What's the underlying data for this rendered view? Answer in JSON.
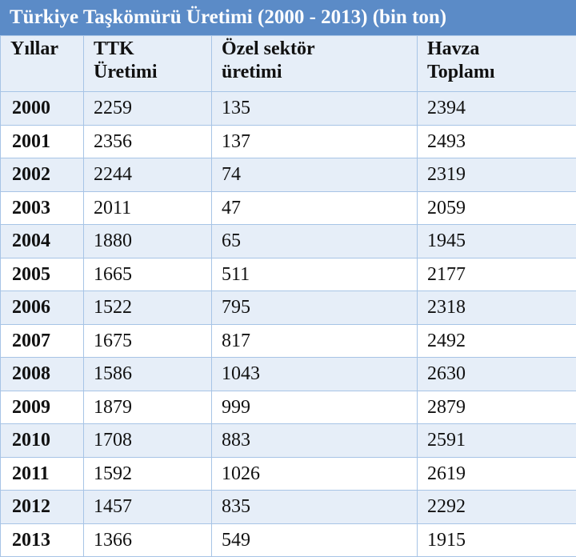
{
  "title": "Türkiye Taşkömürü Üretimi (2000 - 2013) (bin ton)",
  "headers": [
    {
      "line1": "Yıllar",
      "line2": ""
    },
    {
      "line1": "TTK",
      "line2": "Üretimi"
    },
    {
      "line1": "Özel sektör",
      "line2": "üretimi"
    },
    {
      "line1": "Havza",
      "line2": "Toplamı"
    }
  ],
  "rows": [
    {
      "year": "2000",
      "ttk": "2259",
      "ozel": "135",
      "toplam": "2394"
    },
    {
      "year": "2001",
      "ttk": "2356",
      "ozel": "137",
      "toplam": "2493"
    },
    {
      "year": "2002",
      "ttk": "2244",
      "ozel": "74",
      "toplam": "2319"
    },
    {
      "year": "2003",
      "ttk": "2011",
      "ozel": "47",
      "toplam": "2059"
    },
    {
      "year": "2004",
      "ttk": "1880",
      "ozel": "65",
      "toplam": "1945"
    },
    {
      "year": "2005",
      "ttk": "1665",
      "ozel": "511",
      "toplam": "2177"
    },
    {
      "year": "2006",
      "ttk": "1522",
      "ozel": "795",
      "toplam": "2318"
    },
    {
      "year": "2007",
      "ttk": "1675",
      "ozel": "817",
      "toplam": "2492"
    },
    {
      "year": "2008",
      "ttk": "1586",
      "ozel": "1043",
      "toplam": "2630"
    },
    {
      "year": "2009",
      "ttk": "1879",
      "ozel": "999",
      "toplam": "2879"
    },
    {
      "year": "2010",
      "ttk": "1708",
      "ozel": "883",
      "toplam": "2591"
    },
    {
      "year": "2011",
      "ttk": "1592",
      "ozel": "1026",
      "toplam": "2619"
    },
    {
      "year": "2012",
      "ttk": "1457",
      "ozel": "835",
      "toplam": "2292"
    },
    {
      "year": "2013",
      "ttk": "1366",
      "ozel": "549",
      "toplam": "1915"
    }
  ],
  "colors": {
    "title_bg": "#5b8bc7",
    "grid": "#a7c4e6",
    "band": "#e6eef8"
  }
}
